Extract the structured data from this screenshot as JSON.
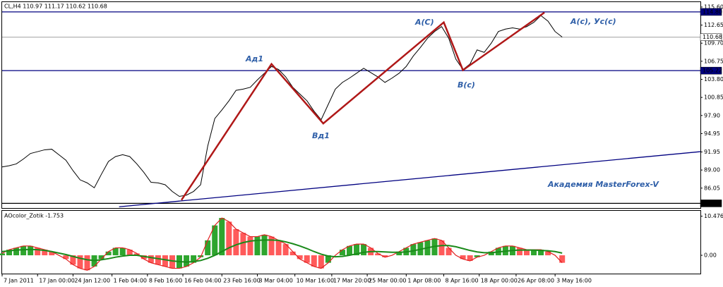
{
  "chart_data": [
    {
      "type": "line",
      "title": "CL,H4  110.97 111.17 110.62 110.68",
      "series": [
        {
          "color": "#000000",
          "values": [
            89.5,
            89.7,
            90.0,
            90.8,
            91.7,
            92.0,
            92.3,
            92.4,
            91.5,
            90.6,
            88.9,
            87.4,
            86.9,
            86.1,
            88.3,
            90.4,
            91.2,
            91.5,
            91.2,
            90.0,
            88.6,
            87.0,
            86.9,
            86.6,
            85.5,
            84.7,
            84.9,
            85.5,
            86.6,
            92.9,
            97.4,
            98.8,
            100.3,
            102.0,
            102.2,
            102.5,
            103.7,
            104.8,
            105.9,
            105.4,
            104.2,
            102.5,
            101.4,
            100.3,
            98.6,
            97.2,
            99.7,
            102.2,
            103.3,
            104.0,
            104.8,
            105.6,
            104.9,
            104.2,
            103.3,
            104.0,
            104.8,
            105.9,
            107.6,
            109.0,
            110.5,
            111.6,
            112.4,
            110.5,
            107.1,
            105.4,
            106.3,
            108.6,
            108.2,
            109.7,
            111.6,
            112.0,
            112.2,
            112.0,
            112.4,
            113.1,
            114.2,
            113.3,
            111.6,
            110.7
          ]
        }
      ],
      "xlim": [
        0,
        98.5
      ],
      "ylim": [
        82.8,
        116.4
      ],
      "yticks": [
        {
          "value": 115.6,
          "label": "115.60"
        },
        {
          "value": 112.65,
          "label": "112.65"
        },
        {
          "value": 109.7,
          "label": "109.70"
        },
        {
          "value": 106.75,
          "label": "106.75"
        },
        {
          "value": 103.8,
          "label": "103.80"
        },
        {
          "value": 100.85,
          "label": "100.85"
        },
        {
          "value": 97.9,
          "label": "97.90"
        },
        {
          "value": 94.95,
          "label": "94.95"
        },
        {
          "value": 91.95,
          "label": "91.95"
        },
        {
          "value": 89.0,
          "label": "89.00"
        },
        {
          "value": 86.05,
          "label": "86.05"
        }
      ],
      "levels": [
        {
          "value": 114.8,
          "label": "114.80",
          "color": "#000080"
        },
        {
          "value": 110.68,
          "label": "110.68",
          "color": "#a0a0a0"
        },
        {
          "value": 105.22,
          "label": "105.22",
          "color": "#000080"
        },
        {
          "value": 83.56,
          "label": "83.56",
          "color": "#000000"
        }
      ],
      "wave": {
        "color": "#b01818",
        "x": [
          25.3,
          38,
          45.3,
          62.3,
          65,
          76.5
        ],
        "y": [
          84.1,
          106.3,
          96.6,
          113.1,
          105.3,
          114.7
        ]
      },
      "trend": {
        "color": "#000080",
        "x": [
          16.5,
          98.5
        ],
        "y": [
          83.0,
          92.0
        ]
      },
      "annotations": [
        "Ад1",
        "A(C)",
        "A(c), Ус(с)",
        "Вд1",
        "B(c)",
        "Академия MasterForex-V"
      ]
    },
    {
      "type": "bar",
      "title": "AOcolor_Zotik -1.753",
      "values": [
        0.5,
        1.5,
        2,
        2.5,
        2.5,
        2,
        1.5,
        1,
        0,
        -1,
        -2.5,
        -3.5,
        -4,
        -3,
        -1,
        1,
        2,
        2,
        1.5,
        0.5,
        -1,
        -2,
        -2.5,
        -3,
        -3.5,
        -3.5,
        -3,
        -2,
        -0.5,
        4,
        8,
        10,
        9,
        7,
        6,
        5,
        5,
        5.5,
        5,
        4,
        3,
        1,
        -1,
        -2,
        -3,
        -3.5,
        -2,
        0,
        1.5,
        2.5,
        3,
        3,
        2,
        0.5,
        -0.5,
        0,
        1,
        2,
        3,
        3.5,
        4,
        4.5,
        4,
        2,
        0,
        -1,
        -1.5,
        -0.5,
        0,
        1,
        2,
        2.5,
        2.5,
        2,
        1.5,
        1.5,
        1.5,
        1,
        0,
        -2
      ],
      "up_color": "#2ea52e",
      "down_color": "#ff5a5a",
      "signal": {
        "color": "#1a8a1a",
        "values": [
          1,
          1.2,
          1.4,
          1.5,
          1.6,
          1.5,
          1.3,
          1,
          0.6,
          0.2,
          -0.3,
          -0.8,
          -1.2,
          -1.4,
          -1.2,
          -0.9,
          -0.5,
          -0.2,
          0,
          0,
          -0.3,
          -0.6,
          -0.9,
          -1.2,
          -1.5,
          -1.7,
          -1.8,
          -1.7,
          -1.4,
          -0.8,
          0,
          1,
          2,
          2.8,
          3.4,
          3.8,
          4,
          4.1,
          4.1,
          4,
          3.6,
          3.1,
          2.5,
          1.8,
          1,
          0.3,
          -0.2,
          -0.4,
          -0.3,
          0,
          0.4,
          0.8,
          1,
          1,
          0.9,
          0.8,
          0.8,
          0.9,
          1.2,
          1.6,
          2,
          2.4,
          2.6,
          2.6,
          2.3,
          1.8,
          1.3,
          0.9,
          0.7,
          0.7,
          0.9,
          1.1,
          1.3,
          1.4,
          1.4,
          1.4,
          1.3,
          1.2,
          1,
          0.6
        ]
      },
      "xlim": [
        0,
        98.5
      ],
      "ylim": [
        -4.9,
        11.9
      ],
      "yticks": [
        {
          "value": 10.476,
          "label": "10.476"
        },
        {
          "value": 0,
          "label": "0.00"
        }
      ],
      "xticks": [
        {
          "value": 0,
          "label": "7 Jan 2011"
        },
        {
          "value": 5,
          "label": "17 Jan 00:00"
        },
        {
          "value": 10,
          "label": "24 Jan 12:00"
        },
        {
          "value": 15.5,
          "label": "1 Feb 04:00"
        },
        {
          "value": 20.5,
          "label": "8 Feb 16:00"
        },
        {
          "value": 25.5,
          "label": "16 Feb 04:00"
        },
        {
          "value": 31,
          "label": "23 Feb 16:00"
        },
        {
          "value": 36,
          "label": "3 Mar 04:00"
        },
        {
          "value": 41.3,
          "label": "10 Mar 16:00"
        },
        {
          "value": 46.5,
          "label": "17 Mar 20:00"
        },
        {
          "value": 51.5,
          "label": "25 Mar 00:00"
        },
        {
          "value": 57,
          "label": "1 Apr 08:00"
        },
        {
          "value": 62.3,
          "label": "8 Apr 16:00"
        },
        {
          "value": 67.3,
          "label": "18 Apr 00:00"
        },
        {
          "value": 72.5,
          "label": "26 Apr 08:00"
        },
        {
          "value": 78,
          "label": "3 May 16:00"
        }
      ]
    }
  ]
}
